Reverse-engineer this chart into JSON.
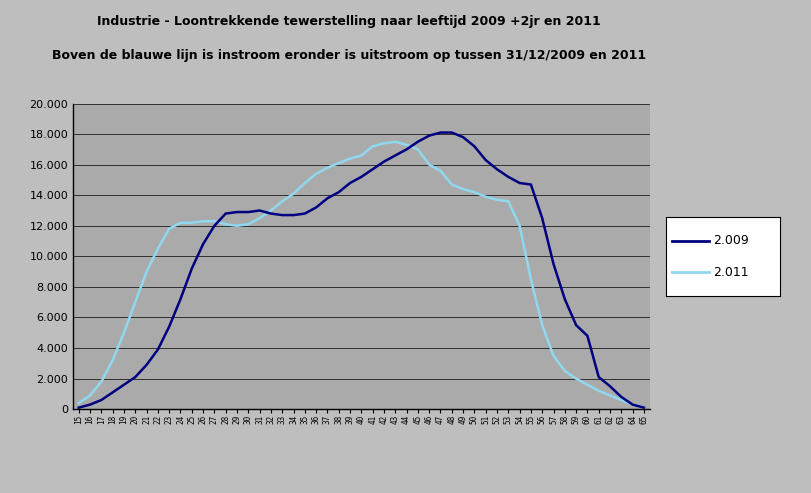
{
  "title_line1": "Industrie - Loontrekkende tewerstelling naar leeftijd 2009 +2jr en 2011",
  "title_line2": "Boven de blauwe lijn is instroom eronder is uitstroom op tussen 31/12/2009 en 2011",
  "legend_2009": "2.009",
  "legend_2011": "2.011",
  "color_2009": "#000080",
  "color_2011": "#90D8F0",
  "background_color": "#B8B8B8",
  "plot_bg_color": "#AAAAAA",
  "ylim": [
    0,
    20000
  ],
  "yticks": [
    0,
    2000,
    4000,
    6000,
    8000,
    10000,
    12000,
    14000,
    16000,
    18000,
    20000
  ],
  "ytick_labels": [
    "0",
    "2.000",
    "4.000",
    "6.000",
    "8.000",
    "10.000",
    "12.000",
    "14.000",
    "16.000",
    "18.000",
    "20.000"
  ],
  "ages_2009": [
    15,
    16,
    17,
    18,
    19,
    20,
    21,
    22,
    23,
    24,
    25,
    26,
    27,
    28,
    29,
    30,
    31,
    32,
    33,
    34,
    35,
    36,
    37,
    38,
    39,
    40,
    41,
    42,
    43,
    44,
    45,
    46,
    47,
    48,
    49,
    50,
    51,
    52,
    53,
    54,
    55,
    56,
    57,
    58,
    59,
    60,
    61,
    62,
    63,
    64,
    65
  ],
  "values_2009": [
    100,
    300,
    600,
    1100,
    1600,
    2100,
    2900,
    3900,
    5400,
    7200,
    9200,
    10800,
    12000,
    12800,
    12900,
    12900,
    13000,
    12800,
    12700,
    12700,
    12800,
    13200,
    13800,
    14200,
    14800,
    15200,
    15700,
    16200,
    16600,
    17000,
    17500,
    17900,
    18100,
    18100,
    17800,
    17200,
    16300,
    15700,
    15200,
    14800,
    14700,
    12500,
    9500,
    7200,
    5500,
    4800,
    2100,
    1500,
    800,
    300,
    100
  ],
  "values_2011": [
    400,
    900,
    1800,
    3200,
    5000,
    7000,
    9000,
    10500,
    11800,
    12200,
    12200,
    12300,
    12300,
    12100,
    12000,
    12100,
    12500,
    13000,
    13600,
    14100,
    14800,
    15400,
    15800,
    16100,
    16400,
    16600,
    17200,
    17400,
    17500,
    17300,
    17000,
    16000,
    15600,
    14700,
    14400,
    14200,
    13900,
    13700,
    13600,
    12000,
    8500,
    5500,
    3500,
    2500,
    2000,
    1600,
    1200,
    900,
    600,
    300,
    100
  ]
}
